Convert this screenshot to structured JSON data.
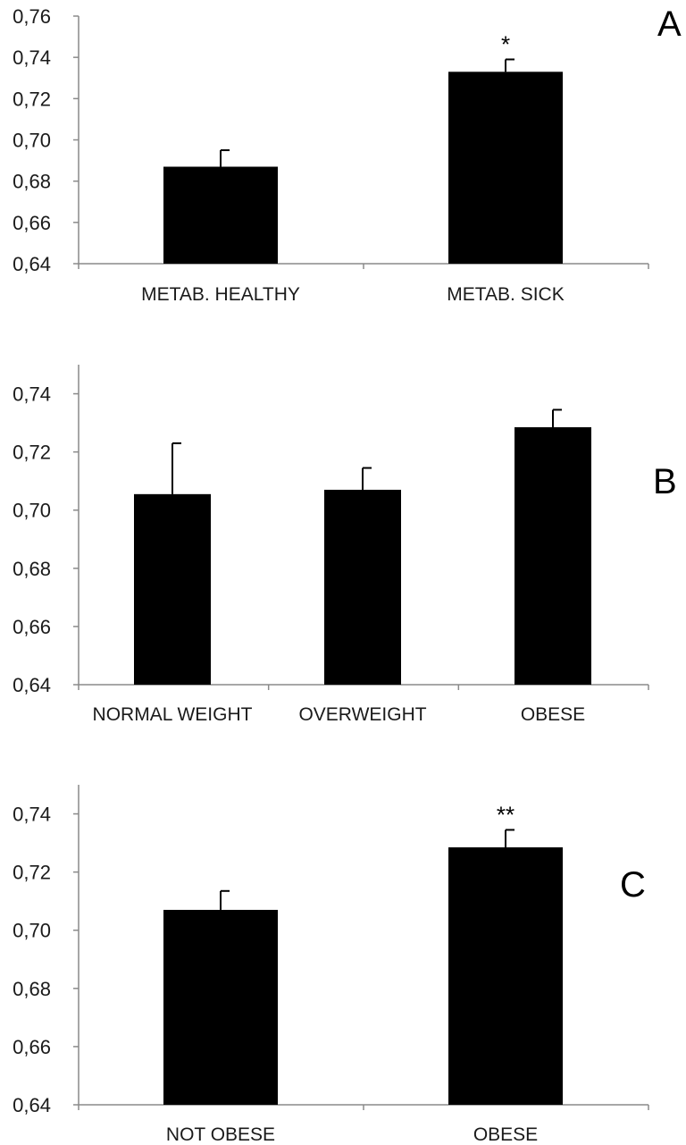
{
  "chart_data": [
    {
      "type": "bar",
      "panel": "A",
      "categories": [
        "METAB. HEALTHY",
        "METAB. SICK"
      ],
      "values": [
        0.687,
        0.733
      ],
      "errors": [
        0.008,
        0.006
      ],
      "annotations": [
        "",
        "*"
      ],
      "ylim": [
        0.64,
        0.76
      ],
      "yticks": [
        "0,64",
        "0,66",
        "0,68",
        "0,70",
        "0,72",
        "0,74",
        "0,76"
      ],
      "bar_color": "#000000"
    },
    {
      "type": "bar",
      "panel": "B",
      "categories": [
        "NORMAL WEIGHT",
        "OVERWEIGHT",
        "OBESE"
      ],
      "values": [
        0.7055,
        0.707,
        0.7285
      ],
      "errors": [
        0.0175,
        0.0075,
        0.006
      ],
      "annotations": [
        "",
        "",
        ""
      ],
      "ylim": [
        0.64,
        0.75
      ],
      "yticks": [
        "0,64",
        "0,66",
        "0,68",
        "0,70",
        "0,72",
        "0,74"
      ],
      "bar_color": "#000000"
    },
    {
      "type": "bar",
      "panel": "C",
      "categories": [
        "NOT OBESE",
        "OBESE"
      ],
      "values": [
        0.707,
        0.7285
      ],
      "errors": [
        0.0065,
        0.006
      ],
      "annotations": [
        "",
        "**"
      ],
      "ylim": [
        0.64,
        0.75
      ],
      "yticks": [
        "0,64",
        "0,66",
        "0,68",
        "0,70",
        "0,72",
        "0,74"
      ],
      "bar_color": "#000000"
    }
  ]
}
